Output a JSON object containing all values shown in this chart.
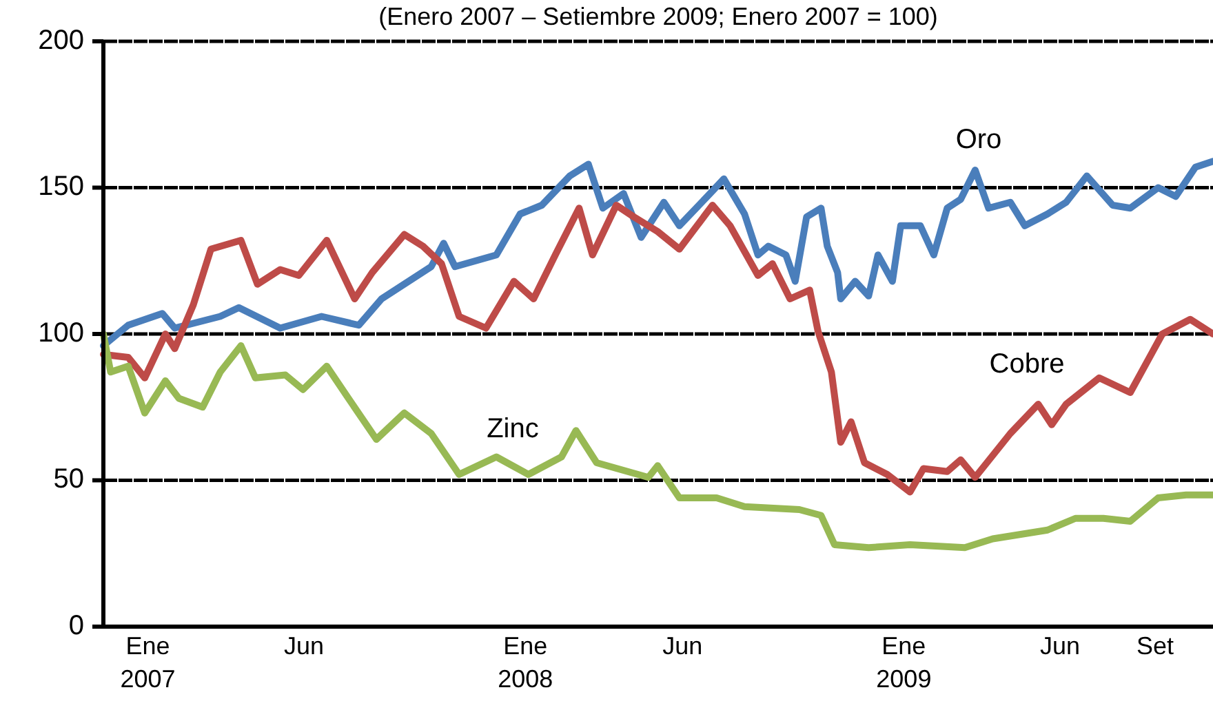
{
  "chart_data": {
    "type": "line",
    "subtitle": "(Enero 2007 – Setiembre 2009; Enero 2007 = 100)",
    "xlim": [
      "2006-11-19",
      "2009-10-27"
    ],
    "ylim": [
      0,
      200
    ],
    "yticks": [
      0,
      50,
      100,
      150,
      200
    ],
    "xticks": [
      {
        "value": "2007-01-01",
        "label": "Ene\n2007"
      },
      {
        "value": "2007-06-01",
        "label": "Jun"
      },
      {
        "value": "2008-01-01",
        "label": "Ene\n2008"
      },
      {
        "value": "2008-06-01",
        "label": "Jun"
      },
      {
        "value": "2009-01-01",
        "label": "Ene\n2009"
      },
      {
        "value": "2009-06-01",
        "label": "Jun"
      },
      {
        "value": "2009-09-01",
        "label": "Set"
      }
    ],
    "grid": "y",
    "series": [
      {
        "name": "Oro",
        "color": "#4a7ebb",
        "x": [
          "2006-11-19",
          "2006-12-13",
          "2007-01-15",
          "2007-01-27",
          "2007-03-12",
          "2007-03-30",
          "2007-05-09",
          "2007-06-18",
          "2007-07-24",
          "2007-08-15",
          "2007-10-02",
          "2007-10-14",
          "2007-10-25",
          "2007-12-04",
          "2007-12-27",
          "2008-01-17",
          "2008-02-13",
          "2008-03-02",
          "2008-03-16",
          "2008-04-05",
          "2008-04-22",
          "2008-05-14",
          "2008-05-29",
          "2008-06-25",
          "2008-07-11",
          "2008-07-31",
          "2008-08-13",
          "2008-08-23",
          "2008-09-09",
          "2008-09-18",
          "2008-09-29",
          "2008-10-13",
          "2008-10-19",
          "2008-10-29",
          "2008-11-01",
          "2008-11-15",
          "2008-11-28",
          "2008-12-07",
          "2008-12-21",
          "2008-12-29",
          "2009-01-17",
          "2009-01-30",
          "2009-02-12",
          "2009-02-25",
          "2009-03-11",
          "2009-03-24",
          "2009-04-14",
          "2009-04-28",
          "2009-05-20",
          "2009-06-07",
          "2009-06-27",
          "2009-07-22",
          "2009-08-08",
          "2009-09-04",
          "2009-09-21",
          "2009-10-10",
          "2009-10-27"
        ],
        "values": [
          96,
          103,
          107,
          102,
          106,
          109,
          102,
          106,
          103,
          112,
          123,
          131,
          123,
          127,
          141,
          144,
          154,
          158,
          143,
          148,
          133,
          145,
          137,
          147,
          153,
          141,
          127,
          130,
          127,
          118,
          140,
          143,
          130,
          121,
          112,
          118,
          113,
          127,
          118,
          137,
          137,
          127,
          143,
          146,
          156,
          143,
          145,
          137,
          141,
          145,
          154,
          144,
          143,
          150,
          147,
          157,
          159
        ]
      },
      {
        "name": "Cobre",
        "color": "#be4b48",
        "x": [
          "2006-11-19",
          "2006-12-13",
          "2006-12-29",
          "2007-01-18",
          "2007-01-27",
          "2007-02-14",
          "2007-03-03",
          "2007-04-01",
          "2007-04-17",
          "2007-05-09",
          "2007-05-27",
          "2007-06-23",
          "2007-07-20",
          "2007-08-06",
          "2007-09-06",
          "2007-09-24",
          "2007-10-12",
          "2007-10-29",
          "2007-11-24",
          "2007-12-21",
          "2008-01-09",
          "2008-01-30",
          "2008-02-22",
          "2008-03-06",
          "2008-03-29",
          "2008-04-15",
          "2008-05-08",
          "2008-05-29",
          "2008-06-30",
          "2008-07-17",
          "2008-08-13",
          "2008-08-27",
          "2008-09-13",
          "2008-10-02",
          "2008-10-10",
          "2008-10-23",
          "2008-11-01",
          "2008-11-11",
          "2008-11-24",
          "2008-12-16",
          "2009-01-07",
          "2009-01-20",
          "2009-02-12",
          "2009-02-25",
          "2009-03-11",
          "2009-04-14",
          "2009-05-11",
          "2009-05-24",
          "2009-06-07",
          "2009-07-09",
          "2009-08-08",
          "2009-09-08",
          "2009-10-05",
          "2009-10-27"
        ],
        "values": [
          93,
          92,
          85,
          100,
          95,
          110,
          129,
          132,
          117,
          122,
          120,
          132,
          112,
          121,
          134,
          130,
          124,
          106,
          102,
          118,
          112,
          127,
          143,
          127,
          144,
          140,
          135,
          129,
          144,
          137,
          120,
          124,
          112,
          115,
          101,
          87,
          63,
          70,
          56,
          52,
          46,
          54,
          53,
          57,
          51,
          66,
          76,
          69,
          76,
          85,
          80,
          100,
          105,
          100
        ]
      },
      {
        "name": "Zinc",
        "color": "#98b954",
        "x": [
          "2006-11-19",
          "2006-11-26",
          "2006-12-13",
          "2006-12-29",
          "2007-01-18",
          "2007-01-31",
          "2007-02-23",
          "2007-03-12",
          "2007-04-01",
          "2007-04-15",
          "2007-05-14",
          "2007-05-31",
          "2007-06-23",
          "2007-07-14",
          "2007-08-10",
          "2007-09-06",
          "2007-10-02",
          "2007-10-29",
          "2007-12-04",
          "2008-01-04",
          "2008-02-05",
          "2008-02-19",
          "2008-03-10",
          "2008-04-29",
          "2008-05-08",
          "2008-05-29",
          "2008-07-04",
          "2008-07-31",
          "2008-09-22",
          "2008-10-13",
          "2008-10-26",
          "2008-11-28",
          "2009-01-07",
          "2009-03-01",
          "2009-03-28",
          "2009-05-20",
          "2009-06-16",
          "2009-07-13",
          "2009-08-08",
          "2009-09-04",
          "2009-10-01",
          "2009-10-27"
        ],
        "values": [
          100,
          87,
          89,
          73,
          84,
          78,
          75,
          87,
          96,
          85,
          86,
          81,
          89,
          78,
          64,
          73,
          66,
          52,
          58,
          52,
          58,
          67,
          56,
          51,
          55,
          44,
          44,
          41,
          40,
          38,
          28,
          27,
          28,
          27,
          30,
          33,
          37,
          37,
          36,
          44,
          45,
          45
        ]
      }
    ]
  }
}
